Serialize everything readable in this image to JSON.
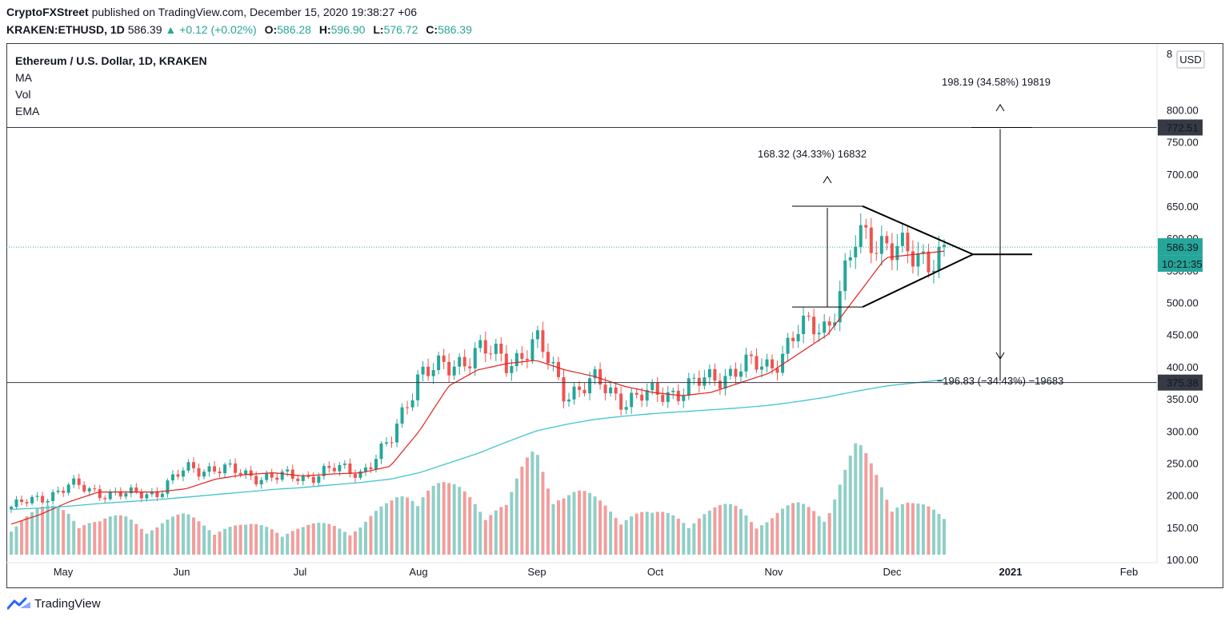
{
  "header": {
    "publisher": "CryptoFXStreet",
    "published_text": "published on TradingView.com, December 15, 2020 19:38:27 +06",
    "symbol": "KRAKEN:ETHUSD, 1D",
    "last": "586.39",
    "change": "+0.12 (+0.02%)",
    "o_label": "O:",
    "o": "586.28",
    "h_label": "H:",
    "h": "596.90",
    "l_label": "L:",
    "l": "576.72",
    "c_label": "C:",
    "c": "586.39"
  },
  "legend": {
    "title": "Ethereum / U.S. Dollar, 1D, KRAKEN",
    "indicators": [
      "MA",
      "Vol",
      "EMA"
    ]
  },
  "price_axis": {
    "currency": "USD",
    "ticks": [
      "800.00",
      "750.00",
      "700.00",
      "650.00",
      "600.00",
      "550.00",
      "500.00",
      "450.00",
      "400.00",
      "350.00",
      "300.00",
      "250.00",
      "200.00",
      "150.00",
      "100.00"
    ],
    "top_partial": "8",
    "current_price_label": "586.39",
    "countdown_label": "10:21:35"
  },
  "time_axis": {
    "labels": [
      "May",
      "Jun",
      "Jul",
      "Aug",
      "Sep",
      "Oct",
      "Nov",
      "Dec",
      "2021",
      "Feb"
    ]
  },
  "annotations": {
    "upper_target": "198.19 (34.58%) 19819",
    "flagpole": "168.32 (34.33%) 16832",
    "lower_target": "−196.83 (−34.43%) −19683",
    "upper_level": "772.51",
    "lower_level": "375.38"
  },
  "colors": {
    "up": "#26a69a",
    "down": "#ef5350",
    "vol_up": "#8fcfc7",
    "vol_down": "#f19e9c",
    "ma": "#e0211b",
    "ema": "#40c4cc",
    "grid_line": "#363a45",
    "price_badge": "#26a69a",
    "level_badge": "#363a45"
  },
  "branding": {
    "name": "TradingView"
  },
  "chart_data": {
    "type": "candlestick",
    "symbol": "ETHUSD",
    "timeframe": "1D",
    "ylim": [
      60,
      830
    ],
    "horizontal_levels": [
      772.51,
      375.38
    ],
    "current_price": 586.39,
    "x": [
      "Apr 18",
      "Apr 25",
      "May 1",
      "May 8",
      "May 15",
      "May 22",
      "Jun 1",
      "Jun 8",
      "Jun 15",
      "Jun 22",
      "Jul 1",
      "Jul 8",
      "Jul 15",
      "Jul 22",
      "Aug 1",
      "Aug 8",
      "Aug 15",
      "Aug 22",
      "Sep 1",
      "Sep 8",
      "Sep 15",
      "Sep 22",
      "Oct 1",
      "Oct 8",
      "Oct 15",
      "Oct 22",
      "Nov 1",
      "Nov 8",
      "Nov 15",
      "Nov 22",
      "Dec 1",
      "Dec 8",
      "Dec 15"
    ],
    "close": [
      182,
      195,
      215,
      205,
      200,
      205,
      240,
      243,
      232,
      228,
      228,
      240,
      237,
      280,
      395,
      395,
      430,
      405,
      440,
      360,
      375,
      350,
      355,
      365,
      380,
      400,
      400,
      455,
      465,
      595,
      600,
      560,
      586
    ],
    "ma_line": [
      155,
      170,
      190,
      205,
      205,
      205,
      210,
      225,
      232,
      235,
      230,
      233,
      235,
      245,
      300,
      370,
      395,
      405,
      410,
      395,
      385,
      370,
      360,
      355,
      360,
      375,
      390,
      420,
      450,
      510,
      570,
      575,
      580
    ],
    "ema_line": [
      178,
      180,
      183,
      187,
      190,
      193,
      197,
      201,
      205,
      209,
      212,
      216,
      220,
      225,
      235,
      250,
      265,
      283,
      300,
      310,
      318,
      323,
      327,
      330,
      333,
      336,
      340,
      346,
      353,
      362,
      370,
      375,
      380
    ],
    "volume_relative": [
      0.35,
      0.4,
      0.45,
      0.3,
      0.35,
      0.3,
      0.35,
      0.3,
      0.25,
      0.28,
      0.25,
      0.28,
      0.3,
      0.45,
      0.75,
      0.6,
      0.55,
      0.45,
      1.0,
      0.6,
      0.5,
      0.45,
      0.35,
      0.4,
      0.4,
      0.45,
      0.35,
      0.45,
      0.5,
      0.95,
      0.7,
      0.45,
      0.35
    ],
    "pennant": {
      "upper_line": [
        650,
        575
      ],
      "lower_line": [
        493,
        575
      ],
      "apex": 575
    }
  }
}
